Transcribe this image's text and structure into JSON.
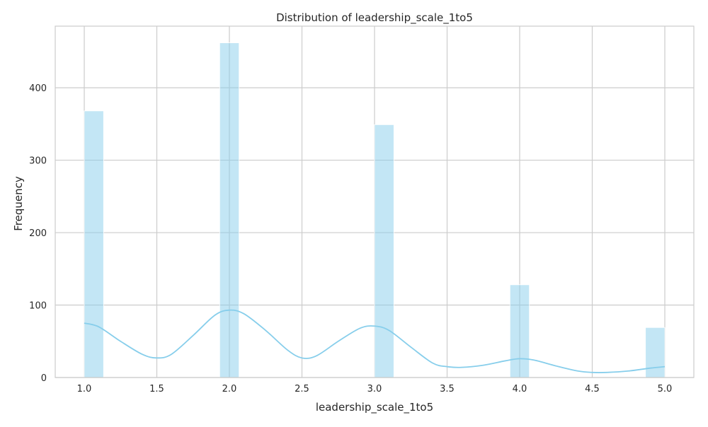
{
  "chart_data": {
    "type": "bar",
    "title": "Distribution of leadership_scale_1to5",
    "xlabel": "leadership_scale_1to5",
    "ylabel": "Frequency",
    "xlim": [
      0.8,
      5.2
    ],
    "ylim": [
      0,
      485
    ],
    "x_ticks": [
      "1.0",
      "1.5",
      "2.0",
      "2.5",
      "3.0",
      "3.5",
      "4.0",
      "4.5",
      "5.0"
    ],
    "y_ticks": [
      "0",
      "100",
      "200",
      "300",
      "400"
    ],
    "grid": true,
    "bar_color": "#87ceeb",
    "bars": [
      {
        "x_start": 1.0,
        "x_end": 1.1333,
        "value": 368
      },
      {
        "x_start": 1.9333,
        "x_end": 2.0667,
        "value": 462
      },
      {
        "x_start": 3.0,
        "x_end": 3.1333,
        "value": 349
      },
      {
        "x_start": 3.9333,
        "x_end": 4.0667,
        "value": 128
      },
      {
        "x_start": 4.8667,
        "x_end": 5.0,
        "value": 69
      }
    ],
    "kde": {
      "color": "#87ceeb",
      "x": [
        1.0,
        1.1,
        1.25,
        1.4,
        1.5,
        1.6,
        1.75,
        1.9,
        2.0,
        2.1,
        2.25,
        2.4,
        2.5,
        2.6,
        2.75,
        2.9,
        3.0,
        3.1,
        3.25,
        3.4,
        3.5,
        3.6,
        3.75,
        3.9,
        4.0,
        4.1,
        4.25,
        4.4,
        4.5,
        4.6,
        4.75,
        4.9,
        5.0
      ],
      "y": [
        75,
        70,
        50,
        32,
        27,
        32,
        58,
        86,
        93,
        88,
        65,
        38,
        27,
        30,
        50,
        68,
        71,
        65,
        42,
        20,
        15,
        14,
        17,
        23,
        26,
        24,
        16,
        9,
        7,
        7,
        9,
        13,
        15
      ]
    }
  }
}
